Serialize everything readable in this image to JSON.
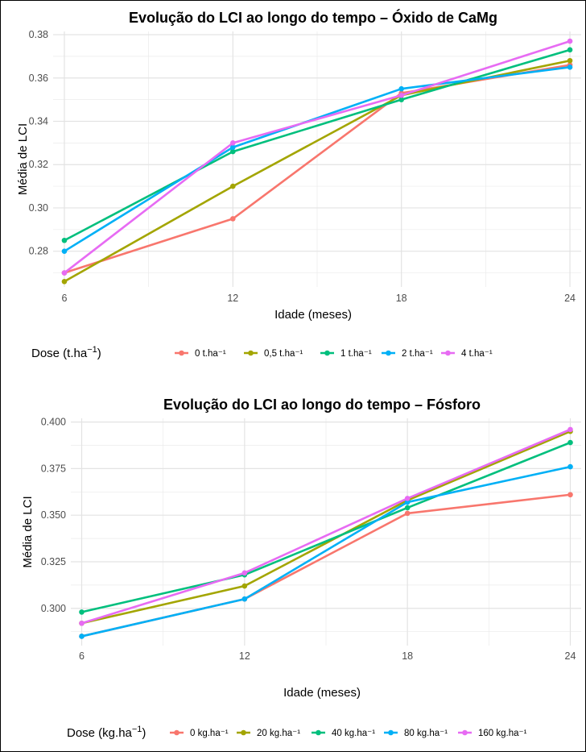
{
  "colors": [
    "#F8766D",
    "#A3A500",
    "#00BF7D",
    "#00B0F6",
    "#E76BF3"
  ],
  "chart_data": [
    {
      "type": "line",
      "title": "Evolução do LCI ao longo do tempo – Óxido de CaMg",
      "xlabel": "Idade (meses)",
      "ylabel": "Média de LCI",
      "x": [
        6,
        12,
        18,
        24
      ],
      "xticks": [
        "6",
        "12",
        "18",
        "24"
      ],
      "xlim": [
        5.6,
        24.4
      ],
      "ylim": [
        0.2635,
        0.3815
      ],
      "yticks": [
        0.28,
        0.3,
        0.32,
        0.34,
        0.36,
        0.38
      ],
      "yticklabels": [
        "0.28",
        "0.30",
        "0.32",
        "0.34",
        "0.36",
        "0.38"
      ],
      "grid": true,
      "legend_position": "bottom",
      "legend_title_main": "Dose (t.ha",
      "legend_title_sup": "−1",
      "legend_title_end": ")",
      "series": [
        {
          "name": "0 t.ha⁻¹",
          "values": [
            0.27,
            0.295,
            0.353,
            0.366
          ]
        },
        {
          "name": "0,5 t.ha⁻¹",
          "values": [
            0.266,
            0.31,
            0.352,
            0.368
          ]
        },
        {
          "name": "1 t.ha⁻¹",
          "values": [
            0.285,
            0.326,
            0.35,
            0.373
          ]
        },
        {
          "name": "2 t.ha⁻¹",
          "values": [
            0.28,
            0.328,
            0.355,
            0.365
          ]
        },
        {
          "name": "4 t.ha⁻¹",
          "values": [
            0.27,
            0.33,
            0.352,
            0.377
          ]
        }
      ]
    },
    {
      "type": "line",
      "title": "Evolução do LCI ao longo do tempo – Fósforo",
      "xlabel": "Idade (meses)",
      "ylabel": "Média de LCI",
      "x": [
        6,
        12,
        18,
        24
      ],
      "xticks": [
        "6",
        "12",
        "18",
        "24"
      ],
      "xlim": [
        5.6,
        24.4
      ],
      "ylim": [
        0.28,
        0.402
      ],
      "yticks": [
        0.3,
        0.325,
        0.35,
        0.375,
        0.4
      ],
      "yticklabels": [
        "0.300",
        "0.325",
        "0.350",
        "0.375",
        "0.400"
      ],
      "grid": true,
      "legend_position": "bottom",
      "legend_title_main": "Dose (kg.ha",
      "legend_title_sup": "−1",
      "legend_title_end": ")",
      "series": [
        {
          "name": "0 kg.ha⁻¹",
          "values": [
            0.285,
            0.305,
            0.351,
            0.361
          ]
        },
        {
          "name": "20 kg.ha⁻¹",
          "values": [
            0.292,
            0.312,
            0.358,
            0.395
          ]
        },
        {
          "name": "40 kg.ha⁻¹",
          "values": [
            0.298,
            0.318,
            0.354,
            0.389
          ]
        },
        {
          "name": "80 kg.ha⁻¹",
          "values": [
            0.285,
            0.305,
            0.357,
            0.376
          ]
        },
        {
          "name": "160 kg.ha⁻¹",
          "values": [
            0.292,
            0.319,
            0.359,
            0.396
          ]
        }
      ]
    }
  ]
}
